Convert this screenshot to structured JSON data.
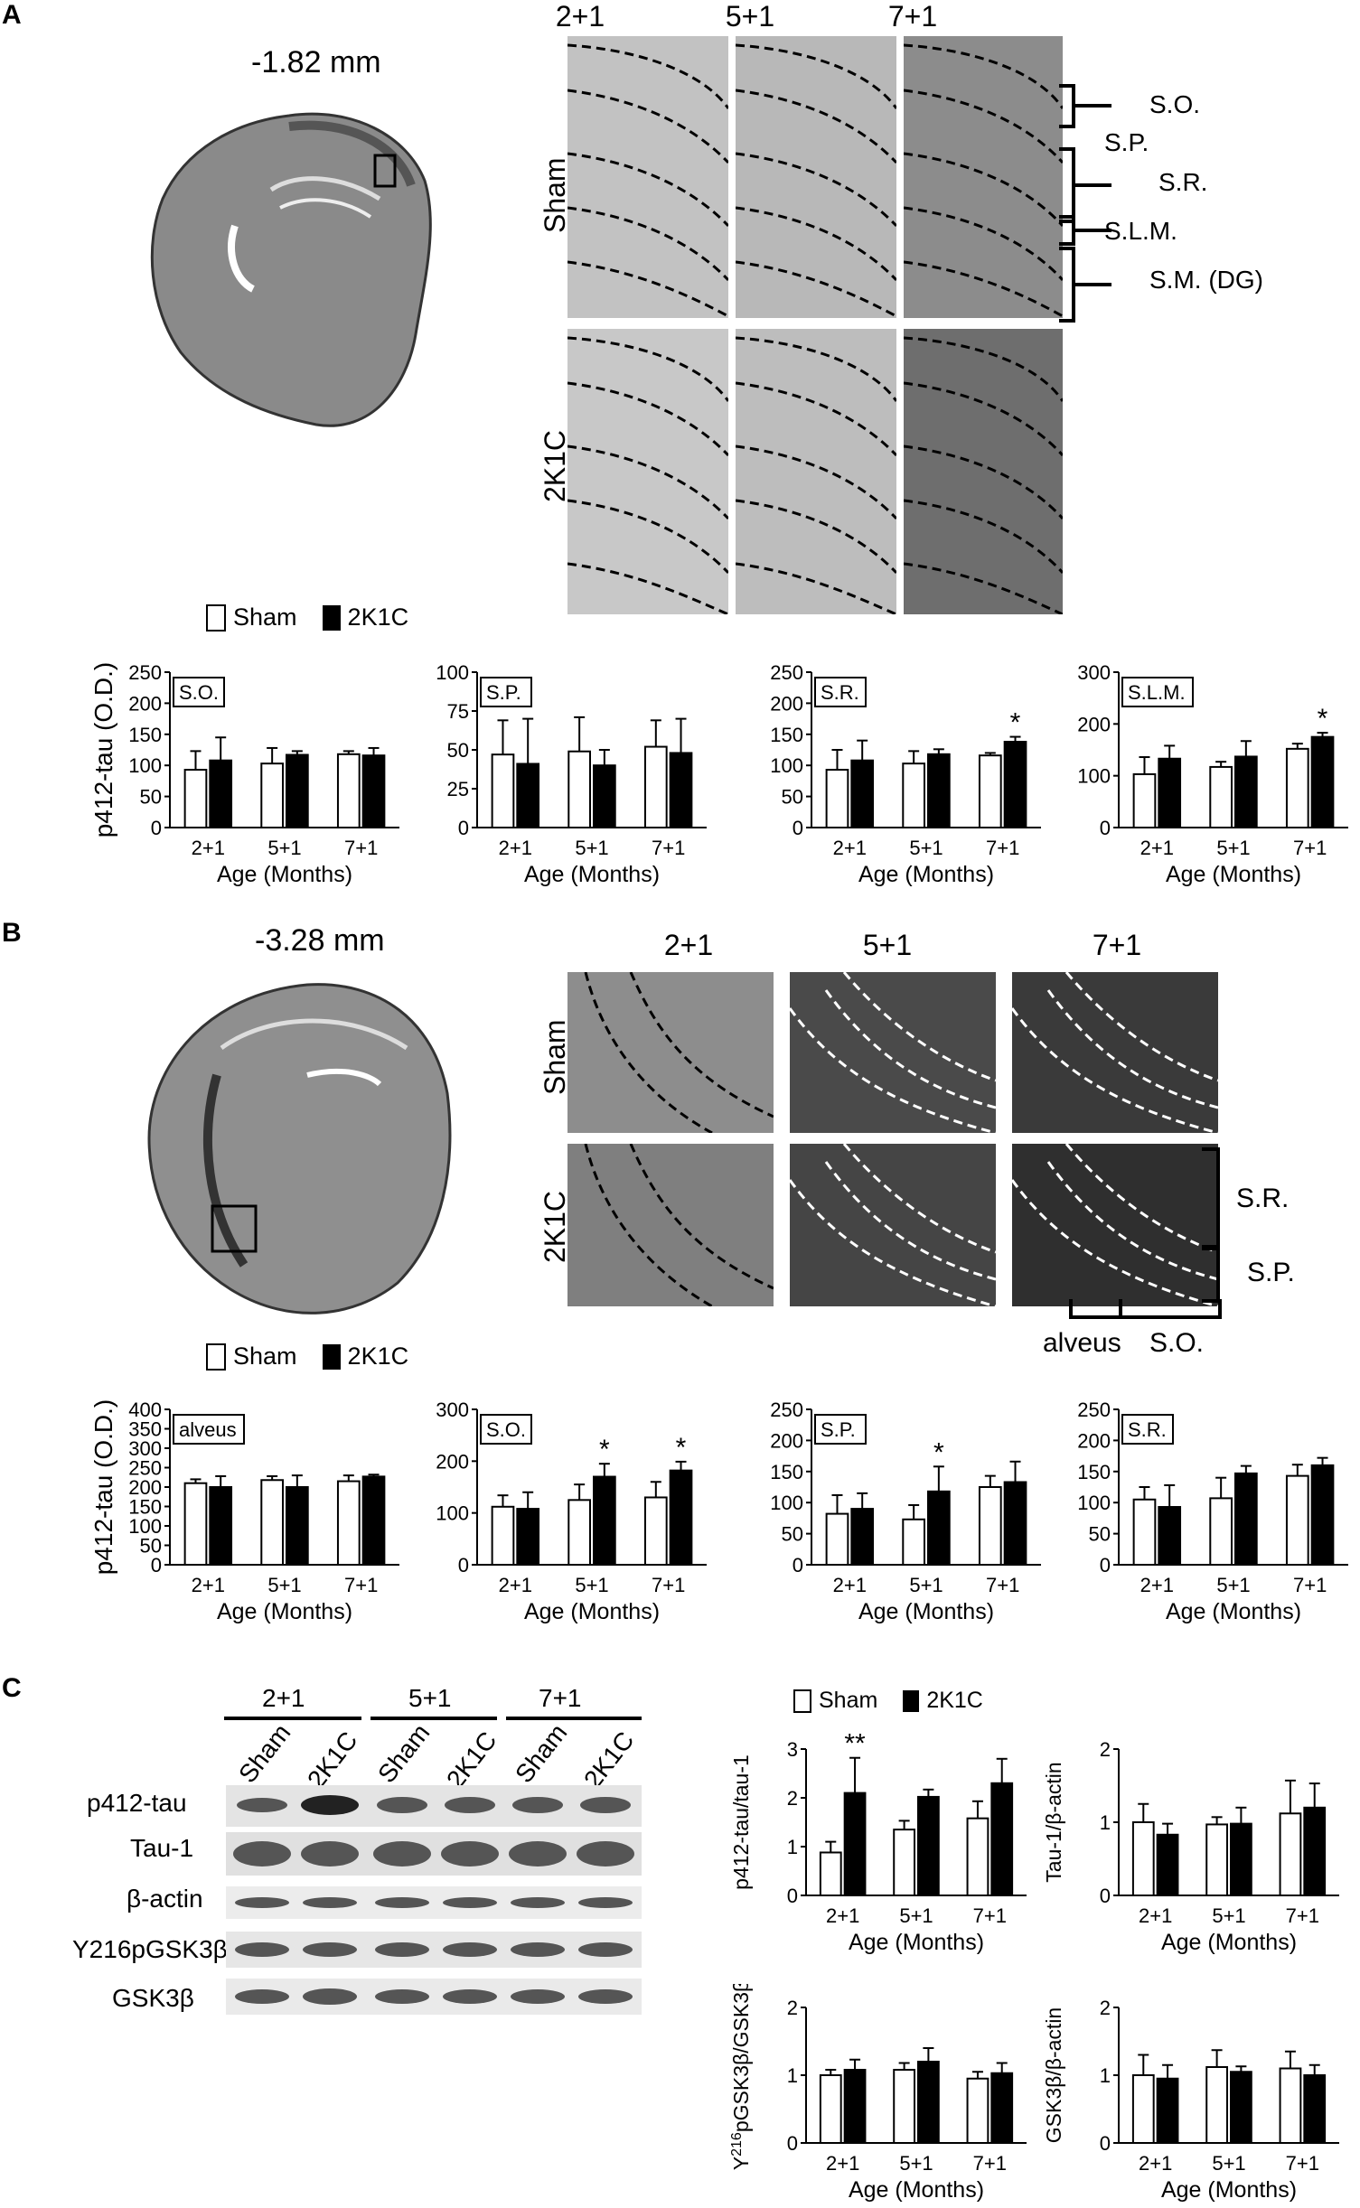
{
  "figure": {
    "panel_a": {
      "letter": "A",
      "depth": "-1.82 mm",
      "col_headers": [
        "2+1",
        "5+1",
        "7+1"
      ],
      "row_labels": [
        "Sham",
        "2K1C"
      ],
      "layers": [
        "S.O.",
        "S.P.",
        "S.R.",
        "S.L.M.",
        "S.M. (DG)"
      ]
    },
    "panel_b": {
      "letter": "B",
      "depth": "-3.28 mm",
      "col_headers": [
        "2+1",
        "5+1",
        "7+1"
      ],
      "row_labels": [
        "Sham",
        "2K1C"
      ],
      "layers": [
        "S.R.",
        "S.P.",
        "alveus",
        "S.O."
      ]
    },
    "panel_c": {
      "letter": "C",
      "blot_groups": [
        "2+1",
        "5+1",
        "7+1"
      ],
      "blot_lanes": [
        "Sham",
        "2K1C",
        "Sham",
        "2K1C",
        "Sham",
        "2K1C"
      ],
      "blot_rows": [
        "p412-tau",
        "Tau-1",
        "β-actin",
        "Y216pGSK3β",
        "GSK3β"
      ]
    },
    "legend": {
      "sham": "Sham",
      "k2k1c": "2K1C"
    },
    "colors": {
      "sham": "#ffffff",
      "k2k1c": "#000000",
      "axis": "#000000"
    }
  },
  "chart_data": [
    {
      "id": "A1",
      "type": "bar",
      "panel_label": "S.O.",
      "ylabel": "p412-tau (O.D.)",
      "xlabel": "Age (Months)",
      "categories": [
        "2+1",
        "5+1",
        "7+1"
      ],
      "ylim": [
        0,
        250
      ],
      "yticks": [
        0,
        50,
        100,
        150,
        200,
        250
      ],
      "series": [
        {
          "name": "Sham",
          "values": [
            93,
            103,
            118
          ],
          "errors": [
            30,
            25,
            5
          ]
        },
        {
          "name": "2K1C",
          "values": [
            108,
            117,
            116
          ],
          "errors": [
            37,
            6,
            12
          ]
        }
      ],
      "sig": [
        "",
        "",
        ""
      ]
    },
    {
      "id": "A2",
      "type": "bar",
      "panel_label": "S.P.",
      "ylabel": "",
      "xlabel": "Age (Months)",
      "categories": [
        "2+1",
        "5+1",
        "7+1"
      ],
      "ylim": [
        0,
        100
      ],
      "yticks": [
        0,
        25,
        50,
        75,
        100
      ],
      "series": [
        {
          "name": "Sham",
          "values": [
            47,
            49,
            52
          ],
          "errors": [
            22,
            22,
            17
          ]
        },
        {
          "name": "2K1C",
          "values": [
            41,
            40,
            48
          ],
          "errors": [
            29,
            10,
            22
          ]
        }
      ],
      "sig": [
        "",
        "",
        ""
      ]
    },
    {
      "id": "A3",
      "type": "bar",
      "panel_label": "S.R.",
      "ylabel": "",
      "xlabel": "Age (Months)",
      "categories": [
        "2+1",
        "5+1",
        "7+1"
      ],
      "ylim": [
        0,
        250
      ],
      "yticks": [
        0,
        50,
        100,
        150,
        200,
        250
      ],
      "series": [
        {
          "name": "Sham",
          "values": [
            93,
            103,
            116
          ],
          "errors": [
            32,
            20,
            4
          ]
        },
        {
          "name": "2K1C",
          "values": [
            108,
            118,
            138
          ],
          "errors": [
            32,
            8,
            8
          ]
        }
      ],
      "sig": [
        "",
        "",
        "*"
      ]
    },
    {
      "id": "A4",
      "type": "bar",
      "panel_label": "S.L.M.",
      "ylabel": "",
      "xlabel": "Age (Months)",
      "categories": [
        "2+1",
        "5+1",
        "7+1"
      ],
      "ylim": [
        0,
        300
      ],
      "yticks": [
        0,
        100,
        200,
        300
      ],
      "series": [
        {
          "name": "Sham",
          "values": [
            103,
            117,
            152
          ],
          "errors": [
            33,
            10,
            10
          ]
        },
        {
          "name": "2K1C",
          "values": [
            133,
            137,
            175
          ],
          "errors": [
            25,
            30,
            8
          ]
        }
      ],
      "sig": [
        "",
        "",
        "*"
      ]
    },
    {
      "id": "B1",
      "type": "bar",
      "panel_label": "alveus",
      "ylabel": "p412-tau (O.D.)",
      "xlabel": "Age (Months)",
      "categories": [
        "2+1",
        "5+1",
        "7+1"
      ],
      "ylim": [
        0,
        400
      ],
      "yticks": [
        0,
        50,
        100,
        150,
        200,
        250,
        300,
        350,
        400
      ],
      "series": [
        {
          "name": "Sham",
          "values": [
            210,
            218,
            215
          ],
          "errors": [
            10,
            10,
            15
          ]
        },
        {
          "name": "2K1C",
          "values": [
            200,
            200,
            227
          ],
          "errors": [
            28,
            30,
            5
          ]
        }
      ],
      "sig": [
        "",
        "",
        ""
      ]
    },
    {
      "id": "B2",
      "type": "bar",
      "panel_label": "S.O.",
      "ylabel": "",
      "xlabel": "Age (Months)",
      "categories": [
        "2+1",
        "5+1",
        "7+1"
      ],
      "ylim": [
        0,
        300
      ],
      "yticks": [
        0,
        100,
        200,
        300
      ],
      "series": [
        {
          "name": "Sham",
          "values": [
            112,
            125,
            130
          ],
          "errors": [
            22,
            30,
            30
          ]
        },
        {
          "name": "2K1C",
          "values": [
            108,
            170,
            182
          ],
          "errors": [
            32,
            25,
            17
          ]
        }
      ],
      "sig": [
        "",
        "*",
        "*"
      ]
    },
    {
      "id": "B3",
      "type": "bar",
      "panel_label": "S.P.",
      "ylabel": "",
      "xlabel": "Age (Months)",
      "categories": [
        "2+1",
        "5+1",
        "7+1"
      ],
      "ylim": [
        0,
        250
      ],
      "yticks": [
        0,
        50,
        100,
        150,
        200,
        250
      ],
      "series": [
        {
          "name": "Sham",
          "values": [
            82,
            73,
            125
          ],
          "errors": [
            30,
            23,
            18
          ]
        },
        {
          "name": "2K1C",
          "values": [
            90,
            118,
            133
          ],
          "errors": [
            25,
            40,
            33
          ]
        }
      ],
      "sig": [
        "",
        "*",
        ""
      ]
    },
    {
      "id": "B4",
      "type": "bar",
      "panel_label": "S.R.",
      "ylabel": "",
      "xlabel": "Age (Months)",
      "categories": [
        "2+1",
        "5+1",
        "7+1"
      ],
      "ylim": [
        0,
        250
      ],
      "yticks": [
        0,
        50,
        100,
        150,
        200,
        250
      ],
      "series": [
        {
          "name": "Sham",
          "values": [
            105,
            107,
            143
          ],
          "errors": [
            20,
            33,
            18
          ]
        },
        {
          "name": "2K1C",
          "values": [
            93,
            147,
            160
          ],
          "errors": [
            35,
            12,
            12
          ]
        }
      ],
      "sig": [
        "",
        "",
        ""
      ]
    },
    {
      "id": "C1",
      "type": "bar",
      "panel_label": "",
      "ylabel": "p412-tau/tau-1",
      "xlabel": "Age (Months)",
      "categories": [
        "2+1",
        "5+1",
        "7+1"
      ],
      "ylim": [
        0,
        3
      ],
      "yticks": [
        0,
        1,
        2,
        3
      ],
      "series": [
        {
          "name": "Sham",
          "values": [
            0.88,
            1.35,
            1.58
          ],
          "errors": [
            0.22,
            0.18,
            0.35
          ]
        },
        {
          "name": "2K1C",
          "values": [
            2.1,
            2.02,
            2.3
          ],
          "errors": [
            0.72,
            0.15,
            0.5
          ]
        }
      ],
      "sig": [
        "**",
        "",
        ""
      ]
    },
    {
      "id": "C2",
      "type": "bar",
      "panel_label": "",
      "ylabel": "Tau-1/β-actin",
      "xlabel": "Age (Months)",
      "categories": [
        "2+1",
        "5+1",
        "7+1"
      ],
      "ylim": [
        0,
        2
      ],
      "yticks": [
        0,
        1,
        2
      ],
      "series": [
        {
          "name": "Sham",
          "values": [
            1.0,
            0.97,
            1.12
          ],
          "errors": [
            0.25,
            0.1,
            0.45
          ]
        },
        {
          "name": "2K1C",
          "values": [
            0.83,
            0.98,
            1.2
          ],
          "errors": [
            0.15,
            0.22,
            0.33
          ]
        }
      ],
      "sig": [
        "",
        "",
        ""
      ]
    },
    {
      "id": "C3",
      "type": "bar",
      "panel_label": "",
      "ylabel": "Y216pGSK3β/GSK3β",
      "xlabel": "Age (Months)",
      "categories": [
        "2+1",
        "5+1",
        "7+1"
      ],
      "ylim": [
        0,
        2
      ],
      "yticks": [
        0,
        1,
        2
      ],
      "series": [
        {
          "name": "Sham",
          "values": [
            1.0,
            1.08,
            0.95
          ],
          "errors": [
            0.08,
            0.1,
            0.1
          ]
        },
        {
          "name": "2K1C",
          "values": [
            1.08,
            1.2,
            1.03
          ],
          "errors": [
            0.15,
            0.2,
            0.15
          ]
        }
      ],
      "sig": [
        "",
        "",
        ""
      ]
    },
    {
      "id": "C4",
      "type": "bar",
      "panel_label": "",
      "ylabel": "GSK3β/β-actin",
      "xlabel": "Age (Months)",
      "categories": [
        "2+1",
        "5+1",
        "7+1"
      ],
      "ylim": [
        0,
        2
      ],
      "yticks": [
        0,
        1,
        2
      ],
      "series": [
        {
          "name": "Sham",
          "values": [
            1.0,
            1.12,
            1.1
          ],
          "errors": [
            0.3,
            0.25,
            0.25
          ]
        },
        {
          "name": "2K1C",
          "values": [
            0.95,
            1.05,
            1.0
          ],
          "errors": [
            0.2,
            0.08,
            0.15
          ]
        }
      ],
      "sig": [
        "",
        "",
        ""
      ]
    }
  ]
}
